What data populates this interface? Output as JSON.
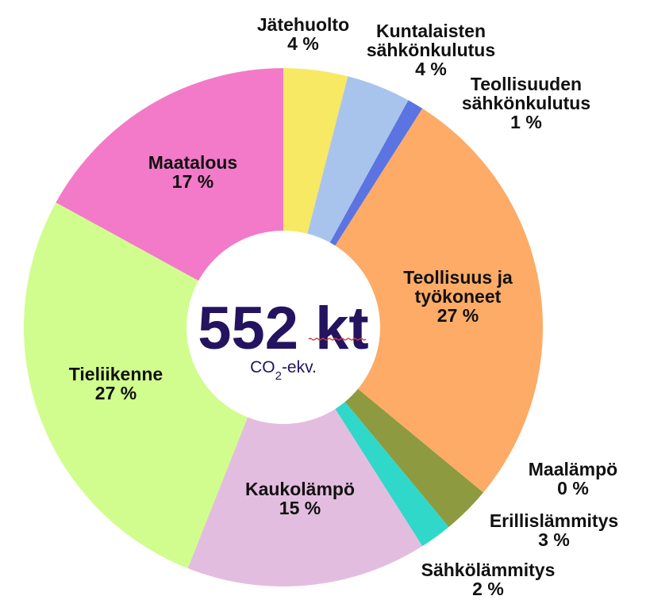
{
  "chart_data": {
    "type": "pie",
    "variant": "donut",
    "center": {
      "total": "552 kt",
      "unit": "CO2-ekv."
    },
    "series": [
      {
        "label": [
          "Jätehuolto"
        ],
        "value_label": "4 %",
        "value": 4.0,
        "color": "#f7e963"
      },
      {
        "label": [
          "Kuntalaisten",
          "sähkönkulutus"
        ],
        "value_label": "4 %",
        "value": 4.0,
        "color": "#a9c4ec"
      },
      {
        "label": [
          "Teollisuuden",
          "sähkönkulutus"
        ],
        "value_label": "1 %",
        "value": 1.0,
        "color": "#5b74e2"
      },
      {
        "label": [
          "Teollisuus ja",
          "työkoneet"
        ],
        "value_label": "27 %",
        "value": 27.0,
        "color": "#fdab66"
      },
      {
        "label": [
          "Maalämpö"
        ],
        "value_label": "0 %",
        "value": 0.0,
        "color": "#b8d7ef"
      },
      {
        "label": [
          "Erillislämmitys"
        ],
        "value_label": "3 %",
        "value": 3.0,
        "color": "#8e9a40"
      },
      {
        "label": [
          "Sähkölämmitys"
        ],
        "value_label": "2 %",
        "value": 2.0,
        "color": "#2fd8c8"
      },
      {
        "label": [
          "Kaukolämpö"
        ],
        "value_label": "15 %",
        "value": 15.0,
        "color": "#e3bddf"
      },
      {
        "label": [
          "Tieliikenne"
        ],
        "value_label": "27 %",
        "value": 27.0,
        "color": "#d1fd8e"
      },
      {
        "label": [
          "Maatalous"
        ],
        "value_label": "17 %",
        "value": 17.0,
        "color": "#f27ac9"
      }
    ]
  }
}
